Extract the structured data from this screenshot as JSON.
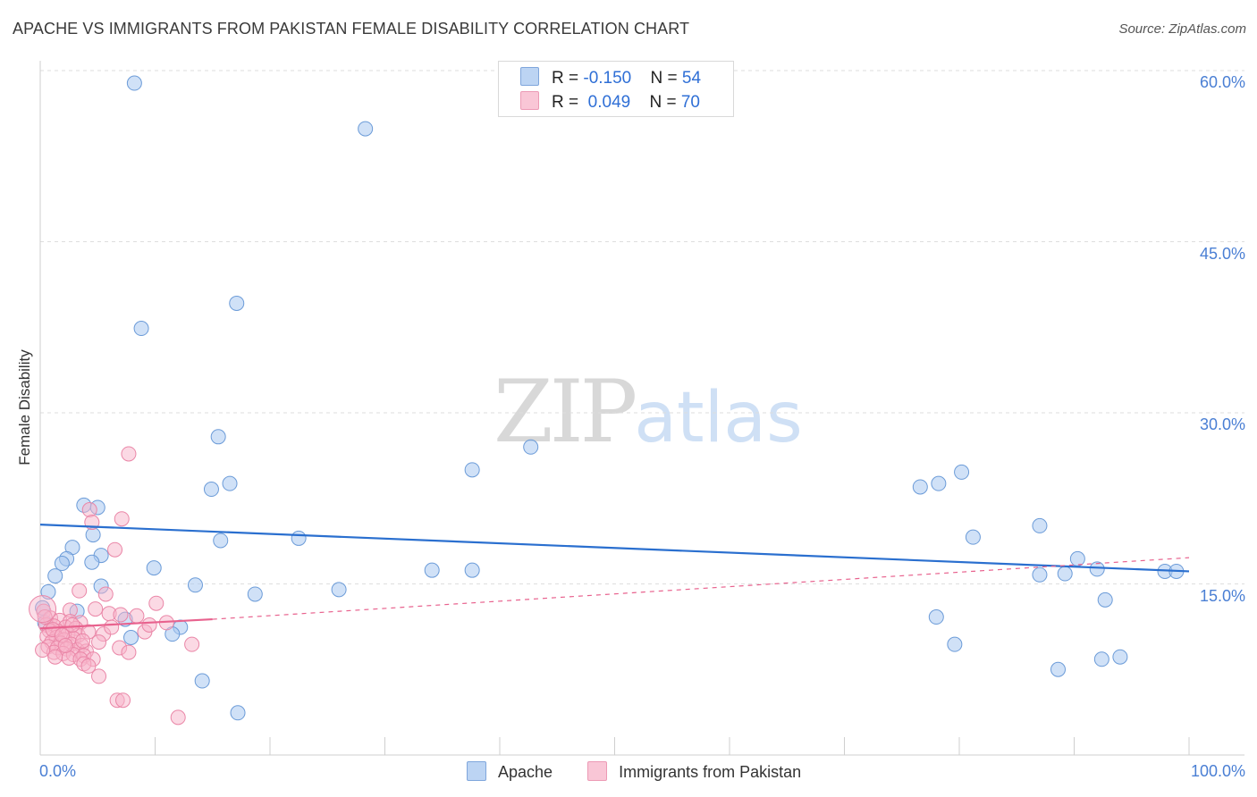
{
  "header": {
    "title": "APACHE VS IMMIGRANTS FROM PAKISTAN FEMALE DISABILITY CORRELATION CHART",
    "source": "Source: ZipAtlas.com"
  },
  "watermark": {
    "zip": "ZIP",
    "atlas": "atlas"
  },
  "legend_top": {
    "rows": [
      {
        "r_label": "R = ",
        "r_value": "-0.150",
        "n_label": "N = ",
        "n_value": "54"
      },
      {
        "r_label": "R = ",
        "r_value": " 0.049",
        "n_label": "N = ",
        "n_value": "70"
      }
    ]
  },
  "legend_bottom": {
    "apache": "Apache",
    "pakistan": "Immigrants from Pakistan"
  },
  "colors": {
    "apache_fill": "#a9c8f0",
    "apache_stroke": "#6b9bd8",
    "apache_line": "#2a6fcf",
    "pak_fill": "#f7b3c9",
    "pak_stroke": "#ea86a7",
    "pak_line": "#e8628e",
    "grid": "#dedede",
    "axis_text": "#4a7fd4"
  },
  "chart_data": {
    "type": "scatter",
    "title": "APACHE VS IMMIGRANTS FROM PAKISTAN FEMALE DISABILITY CORRELATION CHART",
    "xlabel": "",
    "ylabel": "Female Disability",
    "xlim": [
      0,
      100
    ],
    "ylim": [
      0,
      60
    ],
    "y_ticks": [
      15,
      30,
      45,
      60
    ],
    "y_tick_labels": [
      "15.0%",
      "30.0%",
      "45.0%",
      "60.0%"
    ],
    "x_tick_labels": [
      "0.0%",
      "100.0%"
    ],
    "grid": true,
    "legend_position": "top-center",
    "series": [
      {
        "name": "Apache",
        "r": -0.15,
        "n": 54,
        "trend": {
          "x0": 0,
          "y0": 20.2,
          "x1": 100,
          "y1": 16.1
        },
        "points": [
          [
            8.2,
            58.9
          ],
          [
            28.3,
            54.9
          ],
          [
            17.1,
            39.6
          ],
          [
            8.8,
            37.4
          ],
          [
            15.5,
            27.9
          ],
          [
            16.5,
            23.8
          ],
          [
            14.9,
            23.3
          ],
          [
            3.8,
            21.9
          ],
          [
            5.0,
            21.7
          ],
          [
            4.6,
            19.3
          ],
          [
            15.7,
            18.8
          ],
          [
            22.5,
            19.0
          ],
          [
            2.8,
            18.2
          ],
          [
            2.3,
            17.2
          ],
          [
            5.3,
            17.5
          ],
          [
            1.9,
            16.8
          ],
          [
            4.5,
            16.9
          ],
          [
            9.9,
            16.4
          ],
          [
            1.3,
            15.7
          ],
          [
            0.7,
            14.3
          ],
          [
            5.3,
            14.8
          ],
          [
            13.5,
            14.9
          ],
          [
            18.7,
            14.1
          ],
          [
            26.0,
            14.5
          ],
          [
            3.2,
            12.6
          ],
          [
            7.4,
            11.9
          ],
          [
            7.9,
            10.3
          ],
          [
            12.2,
            11.2
          ],
          [
            11.5,
            10.6
          ],
          [
            14.1,
            6.5
          ],
          [
            17.2,
            3.7
          ],
          [
            37.6,
            25.0
          ],
          [
            42.7,
            27.0
          ],
          [
            34.1,
            16.2
          ],
          [
            37.6,
            16.2
          ],
          [
            76.6,
            23.5
          ],
          [
            78.2,
            23.8
          ],
          [
            80.2,
            24.8
          ],
          [
            81.2,
            19.1
          ],
          [
            87.0,
            20.1
          ],
          [
            90.3,
            17.2
          ],
          [
            87.0,
            15.8
          ],
          [
            89.2,
            15.9
          ],
          [
            92.0,
            16.3
          ],
          [
            92.7,
            13.6
          ],
          [
            97.9,
            16.1
          ],
          [
            98.9,
            16.1
          ],
          [
            78.0,
            12.1
          ],
          [
            79.6,
            9.7
          ],
          [
            88.6,
            7.5
          ],
          [
            92.4,
            8.4
          ],
          [
            94.0,
            8.6
          ],
          [
            0.2,
            12.9
          ],
          [
            0.4,
            11.6
          ]
        ]
      },
      {
        "name": "Immigrants from Pakistan",
        "r": 0.049,
        "n": 70,
        "trend_solid": {
          "x0": 0,
          "y0": 11.1,
          "x1": 15,
          "y1": 11.9
        },
        "trend_dashed": {
          "x0": 15,
          "y0": 11.9,
          "x1": 100,
          "y1": 17.3
        },
        "points": [
          [
            7.7,
            26.4
          ],
          [
            4.3,
            21.5
          ],
          [
            7.1,
            20.7
          ],
          [
            4.5,
            20.4
          ],
          [
            6.5,
            18.0
          ],
          [
            3.4,
            14.4
          ],
          [
            5.7,
            14.1
          ],
          [
            10.1,
            13.3
          ],
          [
            0.3,
            12.6
          ],
          [
            2.6,
            12.7
          ],
          [
            6.0,
            12.4
          ],
          [
            7.0,
            12.3
          ],
          [
            0.9,
            12.0
          ],
          [
            1.7,
            11.8
          ],
          [
            2.6,
            11.7
          ],
          [
            3.5,
            11.6
          ],
          [
            0.5,
            11.4
          ],
          [
            1.2,
            11.3
          ],
          [
            2.2,
            11.2
          ],
          [
            3.1,
            11.1
          ],
          [
            0.8,
            10.9
          ],
          [
            1.6,
            10.8
          ],
          [
            2.4,
            10.6
          ],
          [
            3.3,
            10.5
          ],
          [
            4.2,
            10.8
          ],
          [
            0.6,
            10.4
          ],
          [
            1.4,
            10.3
          ],
          [
            2.1,
            10.1
          ],
          [
            2.9,
            10.2
          ],
          [
            5.5,
            10.6
          ],
          [
            9.1,
            10.8
          ],
          [
            1.0,
            9.9
          ],
          [
            1.8,
            9.8
          ],
          [
            2.7,
            9.7
          ],
          [
            3.6,
            9.6
          ],
          [
            5.1,
            9.9
          ],
          [
            0.7,
            9.5
          ],
          [
            1.5,
            9.4
          ],
          [
            2.3,
            9.3
          ],
          [
            3.2,
            9.2
          ],
          [
            4.0,
            9.1
          ],
          [
            6.9,
            9.4
          ],
          [
            13.2,
            9.7
          ],
          [
            1.2,
            9.0
          ],
          [
            2.0,
            8.9
          ],
          [
            2.9,
            8.8
          ],
          [
            3.8,
            8.7
          ],
          [
            7.7,
            9.0
          ],
          [
            2.5,
            8.5
          ],
          [
            3.5,
            8.4
          ],
          [
            4.6,
            8.4
          ],
          [
            3.8,
            8.0
          ],
          [
            4.2,
            7.8
          ],
          [
            5.1,
            6.9
          ],
          [
            6.7,
            4.8
          ],
          [
            7.2,
            4.8
          ],
          [
            12.0,
            3.3
          ],
          [
            0.4,
            12.1
          ],
          [
            1.1,
            11.0
          ],
          [
            1.9,
            10.5
          ],
          [
            2.8,
            11.4
          ],
          [
            3.7,
            10.0
          ],
          [
            4.8,
            12.8
          ],
          [
            0.2,
            9.2
          ],
          [
            1.3,
            8.6
          ],
          [
            6.2,
            11.2
          ],
          [
            8.4,
            12.2
          ],
          [
            11.0,
            11.6
          ],
          [
            9.5,
            11.4
          ],
          [
            2.2,
            9.6
          ]
        ]
      }
    ]
  }
}
